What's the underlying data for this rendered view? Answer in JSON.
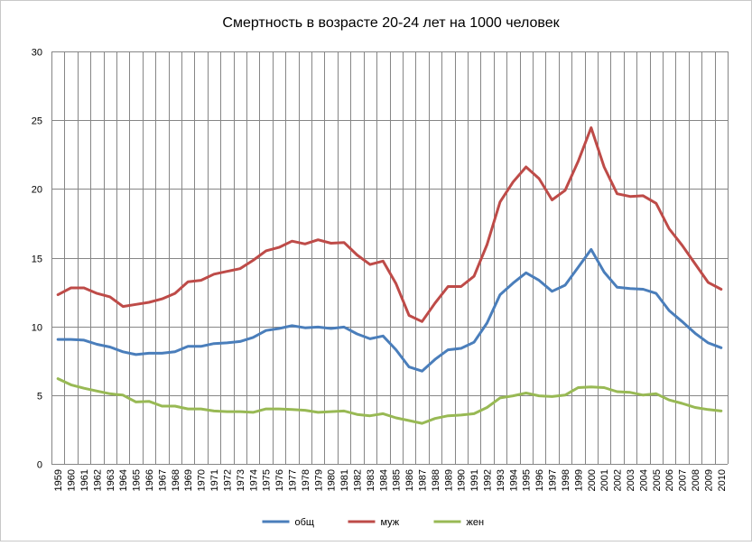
{
  "chart_data": {
    "type": "line",
    "title": "Смертность в возрасте 20-24 лет на 1000 человек",
    "x": [
      "1959",
      "1960",
      "1961",
      "1962",
      "1963",
      "1964",
      "1965",
      "1966",
      "1967",
      "1968",
      "1969",
      "1970",
      "1971",
      "1972",
      "1973",
      "1974",
      "1975",
      "1976",
      "1977",
      "1978",
      "1979",
      "1980",
      "1981",
      "1982",
      "1983",
      "1984",
      "1985",
      "1986",
      "1987",
      "1988",
      "1989",
      "1990",
      "1991",
      "1992",
      "1993",
      "1994",
      "1995",
      "1996",
      "1997",
      "1998",
      "1999",
      "2000",
      "2001",
      "2002",
      "2003",
      "2004",
      "2005",
      "2006",
      "2007",
      "2008",
      "2009",
      "2010"
    ],
    "ylim": [
      0,
      30
    ],
    "yticks": [
      0,
      5,
      10,
      15,
      20,
      25,
      30
    ],
    "grid": true,
    "legend_position": "bottom",
    "series": [
      {
        "name": "общ",
        "color": "#4a7ebb",
        "values": [
          9.05,
          9.05,
          9.0,
          8.7,
          8.5,
          8.15,
          7.95,
          8.05,
          8.05,
          8.15,
          8.55,
          8.55,
          8.75,
          8.8,
          8.9,
          9.2,
          9.7,
          9.85,
          10.05,
          9.9,
          9.95,
          9.85,
          9.95,
          9.45,
          9.1,
          9.3,
          8.3,
          7.05,
          6.75,
          7.6,
          8.3,
          8.4,
          8.85,
          10.25,
          12.3,
          13.15,
          13.9,
          13.35,
          12.55,
          13.0,
          14.3,
          15.6,
          13.95,
          12.85,
          12.75,
          12.7,
          12.4,
          11.15,
          10.35,
          9.5,
          8.8,
          8.45
        ]
      },
      {
        "name": "муж",
        "color": "#be4b48",
        "values": [
          12.3,
          12.8,
          12.8,
          12.4,
          12.15,
          11.45,
          11.6,
          11.75,
          12.0,
          12.4,
          13.25,
          13.35,
          13.8,
          14.0,
          14.2,
          14.8,
          15.5,
          15.75,
          16.2,
          16.0,
          16.3,
          16.05,
          16.1,
          15.2,
          14.5,
          14.75,
          13.1,
          10.8,
          10.35,
          11.7,
          12.9,
          12.9,
          13.65,
          15.95,
          19.05,
          20.5,
          21.6,
          20.75,
          19.2,
          19.9,
          22.0,
          24.45,
          21.6,
          19.65,
          19.45,
          19.5,
          18.95,
          17.1,
          15.9,
          14.55,
          13.2,
          12.7
        ]
      },
      {
        "name": "жен",
        "color": "#98b954",
        "values": [
          6.2,
          5.75,
          5.5,
          5.3,
          5.1,
          5.0,
          4.5,
          4.55,
          4.2,
          4.2,
          4.0,
          4.0,
          3.85,
          3.8,
          3.8,
          3.75,
          4.0,
          4.0,
          3.95,
          3.9,
          3.75,
          3.8,
          3.85,
          3.6,
          3.5,
          3.65,
          3.35,
          3.15,
          2.95,
          3.3,
          3.5,
          3.55,
          3.65,
          4.1,
          4.8,
          4.95,
          5.15,
          4.95,
          4.9,
          5.0,
          5.55,
          5.6,
          5.55,
          5.25,
          5.2,
          5.0,
          5.1,
          4.65,
          4.4,
          4.1,
          3.95,
          3.85
        ]
      }
    ]
  }
}
